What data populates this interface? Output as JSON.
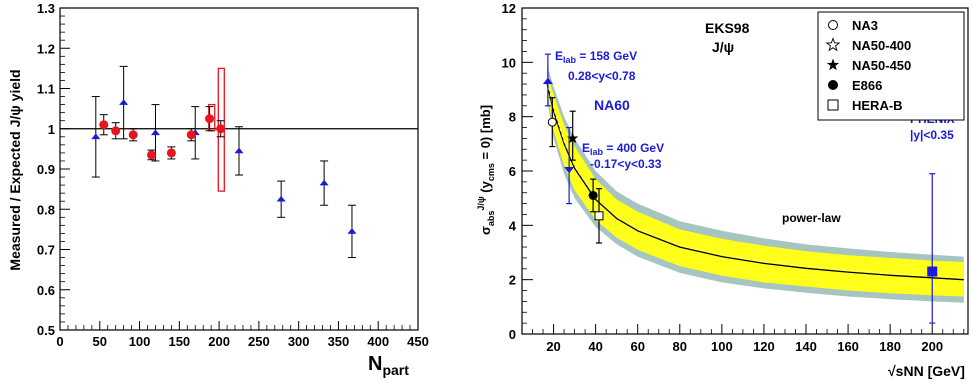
{
  "chart_data": [
    {
      "type": "scatter",
      "title": "",
      "xlabel_main": "N",
      "xlabel_sub": "part",
      "ylabel": "Measured / Expected J/ψ yield",
      "xlim": [
        0,
        450
      ],
      "ylim": [
        0.5,
        1.3
      ],
      "xticks": [
        0,
        50,
        100,
        150,
        200,
        250,
        300,
        350,
        400,
        450
      ],
      "yticks": [
        0.5,
        0.6,
        0.7,
        0.8,
        0.9,
        1.0,
        1.1,
        1.2,
        1.3
      ],
      "ytick_labels": [
        "0.5",
        "0.6",
        "0.7",
        "0.8",
        "0.9",
        "1",
        "1.1",
        "1.2",
        "1.3"
      ],
      "reference_line": 1.0,
      "series": [
        {
          "marker": "triangle",
          "color": "#1a1adb",
          "points": [
            {
              "x": 45,
              "y": 0.98,
              "err": 0.1
            },
            {
              "x": 80,
              "y": 1.065,
              "err": 0.09
            },
            {
              "x": 120,
              "y": 0.99,
              "err": 0.07
            },
            {
              "x": 170,
              "y": 0.99,
              "err": 0.065
            },
            {
              "x": 225,
              "y": 0.945,
              "err": 0.06
            },
            {
              "x": 278,
              "y": 0.825,
              "err": 0.045
            },
            {
              "x": 332,
              "y": 0.865,
              "err": 0.055
            },
            {
              "x": 367,
              "y": 0.745,
              "err": 0.065
            }
          ]
        },
        {
          "marker": "circle",
          "color": "#e8141e",
          "points": [
            {
              "x": 55,
              "y": 1.01,
              "err": 0.025
            },
            {
              "x": 70,
              "y": 0.995,
              "err": 0.02
            },
            {
              "x": 92,
              "y": 0.985,
              "err": 0.015
            },
            {
              "x": 115,
              "y": 0.935,
              "err": 0.012
            },
            {
              "x": 140,
              "y": 0.94,
              "err": 0.015
            },
            {
              "x": 165,
              "y": 0.985,
              "err": 0.015
            },
            {
              "x": 188,
              "y": 1.025,
              "err": 0.03
            },
            {
              "x": 202,
              "y": 1.0,
              "err": 0.02
            }
          ]
        }
      ],
      "syst_boxes": [
        {
          "x": 190,
          "ylow": 0.995,
          "yhigh": 1.06,
          "width": 6
        },
        {
          "x": 202,
          "ylow": 0.845,
          "yhigh": 1.15,
          "width": 6
        }
      ]
    },
    {
      "type": "scatter",
      "title": "EKS98",
      "subtitle": "J/ψ",
      "ylabel": "σabs J/ψ (ycms = 0) [mb]",
      "xlabel": "√sNN [GeV]",
      "xlim": [
        5,
        217
      ],
      "ylim": [
        0,
        12
      ],
      "xticks": [
        20,
        40,
        60,
        80,
        100,
        120,
        140,
        160,
        180,
        200
      ],
      "yticks": [
        0,
        2,
        4,
        6,
        8,
        10,
        12
      ],
      "band": {
        "x": [
          17,
          20,
          25,
          30,
          40,
          50,
          60,
          80,
          100,
          120,
          140,
          160,
          180,
          200,
          215
        ],
        "center": [
          9.2,
          8.2,
          7.0,
          6.1,
          4.95,
          4.25,
          3.8,
          3.2,
          2.85,
          2.6,
          2.42,
          2.28,
          2.16,
          2.07,
          2.0
        ],
        "yellow_low": [
          8.9,
          7.5,
          6.2,
          5.3,
          4.2,
          3.55,
          3.1,
          2.5,
          2.15,
          1.9,
          1.75,
          1.6,
          1.5,
          1.42,
          1.38
        ],
        "yellow_high": [
          9.6,
          8.8,
          7.7,
          6.9,
          5.7,
          4.95,
          4.5,
          3.85,
          3.5,
          3.25,
          3.05,
          2.9,
          2.8,
          2.7,
          2.65
        ],
        "outer_low": [
          8.6,
          7.2,
          5.9,
          5.0,
          3.95,
          3.3,
          2.85,
          2.25,
          1.9,
          1.68,
          1.52,
          1.38,
          1.28,
          1.2,
          1.15
        ],
        "outer_high": [
          9.9,
          9.1,
          8.0,
          7.2,
          6.0,
          5.25,
          4.8,
          4.15,
          3.8,
          3.52,
          3.3,
          3.15,
          3.02,
          2.92,
          2.85
        ]
      },
      "points": [
        {
          "label": "NA60 158 GeV",
          "marker": "triangle-up",
          "color": "#1a1adb",
          "x": 17.3,
          "y": 9.3,
          "elow": 0.9,
          "ehigh": 1.0
        },
        {
          "label": "NA3",
          "marker": "open-circle",
          "color": "#000000",
          "x": 19.4,
          "y": 7.8,
          "elow": 0.9,
          "ehigh": 0.9
        },
        {
          "label": "NA50-450",
          "marker": "star",
          "color": "#000000",
          "x": 29.1,
          "y": 7.2,
          "elow": 0.8,
          "ehigh": 1.0
        },
        {
          "label": "NA60 400 GeV",
          "marker": "triangle-down",
          "color": "#1a1adb",
          "x": 27.4,
          "y": 6.05,
          "elow": 1.25,
          "ehigh": 1.55
        },
        {
          "label": "E866",
          "marker": "filled-circle",
          "color": "#000000",
          "x": 38.8,
          "y": 5.1,
          "elow": 0.6,
          "ehigh": 0.6
        },
        {
          "label": "HERA-B",
          "marker": "open-square",
          "color": "#000000",
          "x": 41.6,
          "y": 4.35,
          "elow": 1.0,
          "ehigh": 1.0
        },
        {
          "label": "PHENIX",
          "marker": "filled-square",
          "color": "#1a1adb",
          "x": 200,
          "y": 2.3,
          "elow": 1.9,
          "ehigh": 3.6
        }
      ],
      "legend": {
        "placement": "top-right",
        "entries": [
          {
            "marker": "open-circle",
            "label": "NA3"
          },
          {
            "marker": "open-star",
            "label": "NA50-400"
          },
          {
            "marker": "star",
            "label": "NA50-450"
          },
          {
            "marker": "filled-circle",
            "label": "E866"
          },
          {
            "marker": "open-square",
            "label": "HERA-B"
          }
        ]
      },
      "annotations": {
        "elab1": "E",
        "elab1_sub": "lab",
        "elab1_val": " = 158 GeV",
        "rap1": "0.28<y<0.78",
        "na60": "NA60",
        "elab2": "E",
        "elab2_sub": "lab",
        "elab2_val": " = 400 GeV",
        "rap2": "-0.17<y<0.33",
        "phenix": "PHENIX",
        "phenix_rap": "|y|<0.35",
        "powerlaw": "power-law"
      },
      "colors": {
        "yellow": "#ffff1a",
        "outer": "#a6c4c0",
        "blue": "#1a1adb"
      }
    }
  ]
}
